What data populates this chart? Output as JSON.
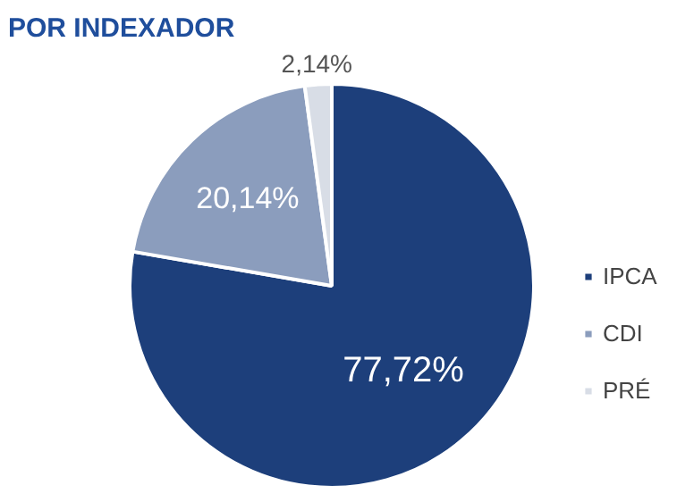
{
  "chart_data": {
    "type": "pie",
    "title": "POR INDEXADOR",
    "categories": [
      "IPCA",
      "CDI",
      "PRÉ"
    ],
    "values": [
      77.72,
      20.14,
      2.14
    ],
    "value_labels": [
      "77,72%",
      "20,14%",
      "2,14%"
    ],
    "colors": [
      "#1d3f7b",
      "#8b9dbd",
      "#d8dde6"
    ],
    "legend": "right"
  }
}
